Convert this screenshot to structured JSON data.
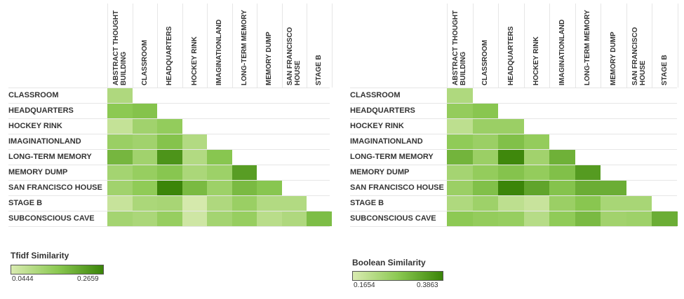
{
  "chart_data": [
    {
      "type": "heatmap",
      "title": "",
      "columns": [
        "ABSTRACT THOUGHT BUILDING",
        "CLASSROOM",
        "HEADQUARTERS",
        "HOCKEY RINK",
        "IMAGINATIONLAND",
        "LONG-TERM MEMORY",
        "MEMORY DUMP",
        "SAN FRANCISCO HOUSE",
        "STAGE B"
      ],
      "columns_display": [
        [
          "ABSTRACT THOUGHT",
          "BUILDING"
        ],
        [
          "CLASSROOM"
        ],
        [
          "HEADQUARTERS"
        ],
        [
          "HOCKEY RINK"
        ],
        [
          "IMAGINATIONLAND"
        ],
        [
          "LONG-TERM MEMORY"
        ],
        [
          "MEMORY DUMP"
        ],
        [
          "SAN FRANCISCO",
          "HOUSE"
        ],
        [
          "STAGE B"
        ]
      ],
      "rows": [
        "CLASSROOM",
        "HEADQUARTERS",
        "HOCKEY RINK",
        "IMAGINATIONLAND",
        "LONG-TERM MEMORY",
        "MEMORY DUMP",
        "SAN FRANCISCO HOUSE",
        "STAGE B",
        "SUBCONSCIOUS CAVE"
      ],
      "values": [
        [
          0.105
        ],
        [
          0.155,
          0.165
        ],
        [
          0.075,
          0.125,
          0.145
        ],
        [
          0.135,
          0.125,
          0.165,
          0.1
        ],
        [
          0.185,
          0.125,
          0.24,
          0.1,
          0.16
        ],
        [
          0.12,
          0.14,
          0.16,
          0.11,
          0.13,
          0.225
        ],
        [
          0.125,
          0.15,
          0.265,
          0.18,
          0.13,
          0.18,
          0.16
        ],
        [
          0.07,
          0.11,
          0.115,
          0.05,
          0.105,
          0.135,
          0.1,
          0.1
        ],
        [
          0.12,
          0.11,
          0.14,
          0.06,
          0.12,
          0.14,
          0.09,
          0.105,
          0.175
        ]
      ],
      "legend": {
        "title": "Tfidf Similarity",
        "min": 0.0444,
        "max": 0.2659,
        "min_label": "0.0444",
        "max_label": "0.2659"
      }
    },
    {
      "type": "heatmap",
      "title": "",
      "columns": [
        "ABSTRACT THOUGHT BUILDING",
        "CLASSROOM",
        "HEADQUARTERS",
        "HOCKEY RINK",
        "IMAGINATIONLAND",
        "LONG-TERM MEMORY",
        "MEMORY DUMP",
        "SAN FRANCISCO HOUSE",
        "STAGE B"
      ],
      "columns_display": [
        [
          "ABSTRACT THOUGHT",
          "BUILDING"
        ],
        [
          "CLASSROOM"
        ],
        [
          "HEADQUARTERS"
        ],
        [
          "HOCKEY RINK"
        ],
        [
          "IMAGINATIONLAND"
        ],
        [
          "LONG-TERM MEMORY"
        ],
        [
          "MEMORY DUMP"
        ],
        [
          "SAN FRANCISCO",
          "HOUSE"
        ],
        [
          "STAGE B"
        ]
      ],
      "rows": [
        "CLASSROOM",
        "HEADQUARTERS",
        "HOCKEY RINK",
        "IMAGINATIONLAND",
        "LONG-TERM MEMORY",
        "MEMORY DUMP",
        "SAN FRANCISCO HOUSE",
        "STAGE B",
        "SUBCONSCIOUS CAVE"
      ],
      "values": [
        [
          0.225
        ],
        [
          0.265,
          0.28
        ],
        [
          0.205,
          0.255,
          0.255
        ],
        [
          0.27,
          0.255,
          0.29,
          0.265
        ],
        [
          0.31,
          0.255,
          0.38,
          0.245,
          0.315
        ],
        [
          0.24,
          0.265,
          0.285,
          0.265,
          0.29,
          0.35
        ],
        [
          0.255,
          0.29,
          0.385,
          0.335,
          0.285,
          0.32,
          0.32
        ],
        [
          0.225,
          0.25,
          0.205,
          0.19,
          0.255,
          0.28,
          0.235,
          0.235
        ],
        [
          0.275,
          0.265,
          0.26,
          0.215,
          0.27,
          0.3,
          0.245,
          0.25,
          0.32
        ]
      ],
      "legend": {
        "title": "Boolean Similarity",
        "min": 0.1654,
        "max": 0.3863,
        "min_label": "0.1654",
        "max_label": "0.3863"
      }
    }
  ],
  "colors": {
    "low": "#d9ebb1",
    "mid": "#8cc953",
    "high": "#3a8408",
    "gridline": "#e6e6e6"
  }
}
